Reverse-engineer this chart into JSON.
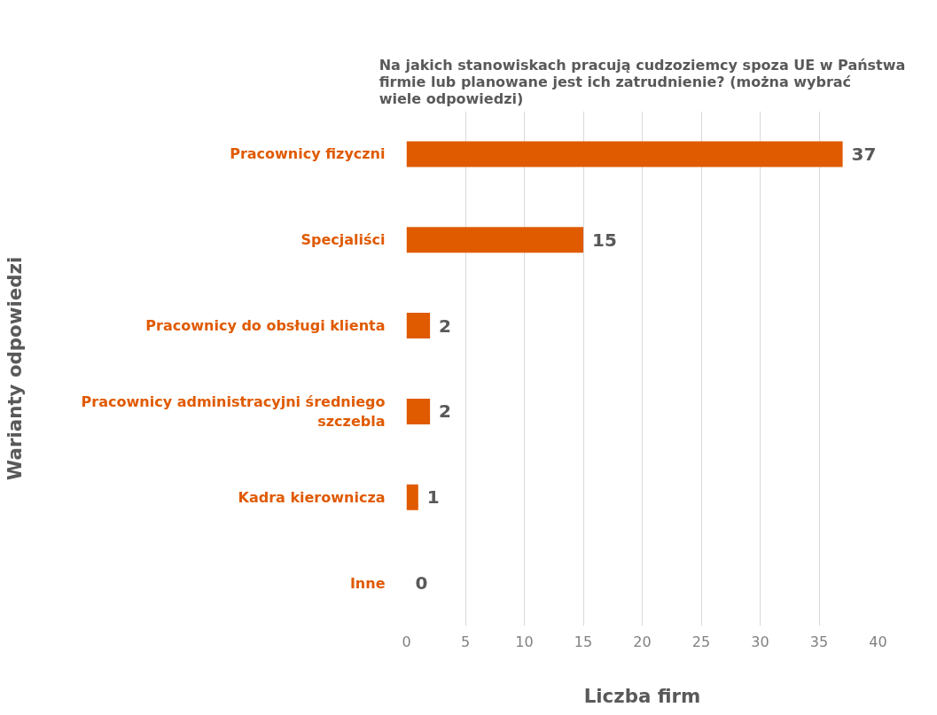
{
  "chart_data": {
    "type": "bar",
    "orientation": "horizontal",
    "title": "Na jakich stanowiskach pracują cudzoziemcy spoza UE w Państwa firmie lub planowane jest ich zatrudnienie? (można wybrać wiele odpowiedzi)",
    "xlabel": "Liczba firm",
    "ylabel": "Warianty odpowiedzi",
    "categories": [
      "Pracownicy fizyczni",
      "Specjaliści",
      "Pracownicy do obsługi klienta",
      "Pracownicy administracyjni średniego szczebla",
      "Kadra kierownicza",
      "Inne"
    ],
    "values": [
      37,
      15,
      2,
      2,
      1,
      0
    ],
    "color": "#e05a00",
    "xlim": [
      0,
      40
    ],
    "xticks": [
      0,
      5,
      10,
      15,
      20,
      25,
      30,
      35,
      40
    ],
    "grid": "x",
    "data_labels": true
  }
}
